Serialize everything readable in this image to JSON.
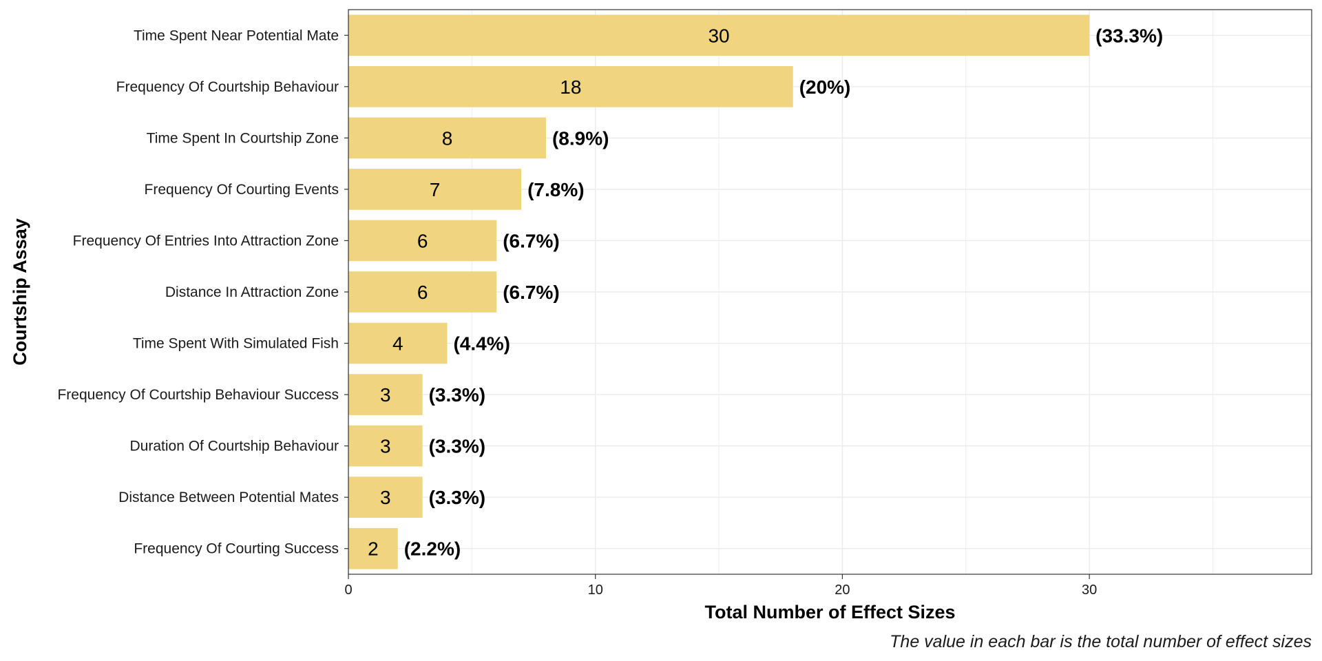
{
  "chart_data": {
    "type": "bar",
    "orientation": "horizontal",
    "categories": [
      "Time Spent Near Potential Mate",
      "Frequency Of Courtship Behaviour",
      "Time Spent In Courtship Zone",
      "Frequency Of Courting Events",
      "Frequency Of Entries Into Attraction Zone",
      "Distance In Attraction Zone",
      "Time Spent With Simulated Fish",
      "Frequency Of Courtship Behaviour Success",
      "Duration Of Courtship Behaviour",
      "Distance Between Potential Mates",
      "Frequency Of Courting Success"
    ],
    "values": [
      30,
      18,
      8,
      7,
      6,
      6,
      4,
      3,
      3,
      3,
      2
    ],
    "value_labels": [
      "30",
      "18",
      "8",
      "7",
      "6",
      "6",
      "4",
      "3",
      "3",
      "3",
      "2"
    ],
    "percent_labels": [
      "(33.3%)",
      "(20%)",
      "(8.9%)",
      "(7.8%)",
      "(6.7%)",
      "(6.7%)",
      "(4.4%)",
      "(3.3%)",
      "(3.3%)",
      "(3.3%)",
      "(2.2%)"
    ],
    "xlabel": "Total Number of Effect Sizes",
    "ylabel": "Courtship Assay",
    "caption": "The value in each bar is the total number of effect sizes",
    "xlim": [
      0,
      39
    ],
    "xticks": [
      0,
      10,
      20,
      30
    ],
    "xtick_labels": [
      "0",
      "10",
      "20",
      "30"
    ],
    "grid": true,
    "bar_color": "#f0d47f",
    "grid_color": "#ebebeb",
    "frame_color": "#333333"
  }
}
